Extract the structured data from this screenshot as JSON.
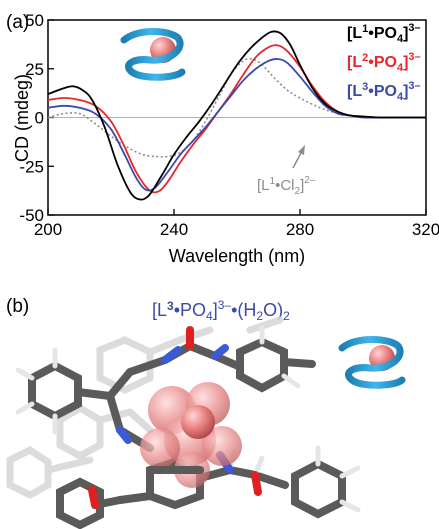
{
  "panel_a_label": "(a)",
  "panel_b_label": "(b)",
  "panel_b_title": {
    "pre": "[L",
    "sup": "3",
    "post": "•PO",
    "sub": "4",
    "tail": "]",
    "charge": "3–",
    "water": "•(H",
    "water_sub": "2",
    "water_end": "O)",
    "water_n": "2"
  },
  "colors": {
    "L1PO4": "#000000",
    "L2PO4": "#e8262e",
    "L3PO4": "#3a4aa8",
    "L1Cl2": "#8c8c8c",
    "helix": "#2a9fd6",
    "sphere": "#ef8a8a"
  },
  "chart_data": {
    "type": "line",
    "xlabel": "Wavelength (nm)",
    "ylabel": "CD (mdeg)",
    "xlim": [
      200,
      320
    ],
    "ylim": [
      -50,
      50
    ],
    "xticks": [
      200,
      240,
      280,
      320
    ],
    "yticks": [
      50,
      25,
      0,
      -25,
      -50
    ],
    "grid": false,
    "legend_position": "top-right",
    "series": [
      {
        "name": "[L1•PO4]3–",
        "label": {
          "a": "[L",
          "sup": "1",
          "b": "•PO",
          "sub": "4",
          "c": "]",
          "charge": "3–"
        },
        "color_key": "L1PO4",
        "dash": "solid",
        "x": [
          200,
          205,
          208,
          211,
          214,
          218,
          222,
          226,
          229,
          232,
          236,
          240,
          244,
          248,
          252,
          256,
          260,
          264,
          268,
          271,
          274,
          277,
          280,
          284,
          288,
          292,
          296,
          300,
          305,
          310,
          320
        ],
        "y": [
          12,
          15,
          16,
          14,
          9,
          -5,
          -24,
          -38,
          -42,
          -40,
          -30,
          -19,
          -10,
          -2,
          7,
          17,
          27,
          35,
          41,
          44,
          43,
          37,
          27,
          15,
          7,
          3,
          1,
          0.5,
          0,
          0,
          0
        ]
      },
      {
        "name": "[L2•PO4]3–",
        "label": {
          "a": "[L",
          "sup": "2",
          "b": "•PO",
          "sub": "4",
          "c": "]",
          "charge": "3–"
        },
        "color_key": "L2PO4",
        "dash": "solid",
        "x": [
          200,
          205,
          210,
          215,
          220,
          224,
          228,
          232,
          235,
          238,
          242,
          246,
          250,
          254,
          258,
          262,
          266,
          270,
          273,
          276,
          280,
          284,
          288,
          292,
          296,
          300,
          305,
          310,
          320
        ],
        "y": [
          9,
          10,
          9,
          6,
          -2,
          -14,
          -28,
          -37,
          -38,
          -33,
          -23,
          -14,
          -6,
          3,
          12,
          22,
          31,
          36,
          37,
          34,
          26,
          16,
          8,
          3,
          1,
          0.5,
          0,
          0,
          0
        ]
      },
      {
        "name": "[L3•PO4]3–",
        "label": {
          "a": "[L",
          "sup": "3",
          "b": "•PO",
          "sub": "4",
          "c": "]",
          "charge": "3–"
        },
        "color_key": "L3PO4",
        "dash": "solid",
        "x": [
          200,
          205,
          210,
          215,
          220,
          224,
          228,
          231,
          234,
          238,
          242,
          246,
          250,
          254,
          258,
          262,
          266,
          270,
          273,
          276,
          280,
          284,
          288,
          292,
          296,
          300,
          305,
          310,
          320
        ],
        "y": [
          5,
          6,
          5,
          2,
          -6,
          -18,
          -31,
          -37,
          -36,
          -28,
          -19,
          -12,
          -5,
          3,
          11,
          19,
          25,
          29,
          30,
          28,
          21,
          13,
          6,
          2,
          1,
          0,
          0,
          0,
          0
        ]
      },
      {
        "name": "[L1•Cl2]2–",
        "label": {
          "a": "[L",
          "sup": "1",
          "b": "•Cl",
          "sub": "2",
          "c": "]",
          "charge": "2–"
        },
        "color_key": "L1Cl2",
        "dash": "dotted",
        "x": [
          200,
          205,
          210,
          214,
          218,
          222,
          226,
          230,
          234,
          238,
          242,
          246,
          250,
          254,
          258,
          262,
          265,
          268,
          272,
          276,
          280,
          285,
          290,
          296,
          302,
          310,
          320
        ],
        "y": [
          0,
          2,
          2,
          -2,
          -7,
          -12,
          -16,
          -19,
          -20,
          -20,
          -18,
          -12,
          -2,
          10,
          22,
          29,
          30,
          27,
          20,
          14,
          10,
          6,
          3,
          1,
          0,
          0,
          0
        ]
      }
    ]
  }
}
